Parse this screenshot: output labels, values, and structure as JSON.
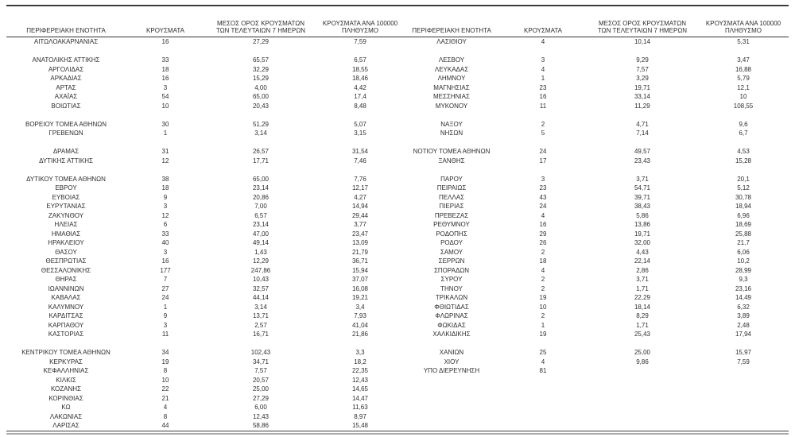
{
  "colors": {
    "text": "#2e2e2e",
    "rule_dark": "#3c3c3c",
    "rule_light": "#ababab",
    "background": "#ffffff"
  },
  "table": {
    "header_lines": [
      [
        "ΠΕΡΙΦΕΡΕΙΑΚΗ ΕΝΟΤΗΤΑ"
      ],
      [
        "ΚΡΟΥΣΜΑΤΑ"
      ],
      [
        "ΜΕΣΟΣ ΟΡΟΣ ΚΡΟΥΣΜΑΤΩΝ",
        "ΤΩΝ ΤΕΛΕΥΤΑΙΩΝ 7 ΗΜΕΡΩΝ"
      ],
      [
        "ΚΡΟΥΣΜΑΤΑ ΑΝΑ 100000",
        "ΠΛΗΘΥΣΜΟ"
      ]
    ],
    "left_rows": [
      [
        "ΑΙΤΩΛΟΑΚΑΡΝΑΝΙΑΣ",
        "16",
        "27,29",
        "7,59"
      ],
      null,
      [
        "ΑΝΑΤΟΛΙΚΗΣ ΑΤΤΙΚΗΣ",
        "33",
        "65,57",
        "6,57"
      ],
      [
        "ΑΡΓΟΛΙΔΑΣ",
        "18",
        "32,29",
        "18,55"
      ],
      [
        "ΑΡΚΑΔΙΑΣ",
        "16",
        "15,29",
        "18,46"
      ],
      [
        "ΑΡΤΑΣ",
        "3",
        "4,00",
        "4,42"
      ],
      [
        "ΑΧΑΪΑΣ",
        "54",
        "65,00",
        "17,4"
      ],
      [
        "ΒΟΙΩΤΙΑΣ",
        "10",
        "20,43",
        "8,48"
      ],
      null,
      [
        "ΒΟΡΕΙΟΥ ΤΟΜΕΑ ΑΘΗΝΩΝ",
        "30",
        "51,29",
        "5,07"
      ],
      [
        "ΓΡΕΒΕΝΩΝ",
        "1",
        "3,14",
        "3,15"
      ],
      null,
      [
        "ΔΡΑΜΑΣ",
        "31",
        "26,57",
        "31,54"
      ],
      [
        "ΔΥΤΙΚΗΣ ΑΤΤΙΚΗΣ",
        "12",
        "17,71",
        "7,46"
      ],
      null,
      [
        "ΔΥΤΙΚΟΥ ΤΟΜΕΑ ΑΘΗΝΩΝ",
        "38",
        "65,00",
        "7,76"
      ],
      [
        "ΕΒΡΟΥ",
        "18",
        "23,14",
        "12,17"
      ],
      [
        "ΕΥΒΟΙΑΣ",
        "9",
        "20,86",
        "4,27"
      ],
      [
        "ΕΥΡΥΤΑΝΙΑΣ",
        "3",
        "7,00",
        "14,94"
      ],
      [
        "ΖΑΚΥΝΘΟΥ",
        "12",
        "6,57",
        "29,44"
      ],
      [
        "ΗΛΕΙΑΣ",
        "6",
        "23,14",
        "3,77"
      ],
      [
        "ΗΜΑΘΙΑΣ",
        "33",
        "47,00",
        "23,47"
      ],
      [
        "ΗΡΑΚΛΕΙΟΥ",
        "40",
        "49,14",
        "13,09"
      ],
      [
        "ΘΑΣΟΥ",
        "3",
        "1,43",
        "21,79"
      ],
      [
        "ΘΕΣΠΡΩΤΙΑΣ",
        "16",
        "12,29",
        "36,71"
      ],
      [
        "ΘΕΣΣΑΛΟΝΙΚΗΣ",
        "177",
        "247,86",
        "15,94"
      ],
      [
        "ΘΗΡΑΣ",
        "7",
        "10,43",
        "37,07"
      ],
      [
        "ΙΩΑΝΝΙΝΩΝ",
        "27",
        "32,57",
        "16,08"
      ],
      [
        "ΚΑΒΑΛΑΣ",
        "24",
        "44,14",
        "19,21"
      ],
      [
        "ΚΑΛΥΜΝΟΥ",
        "1",
        "3,14",
        "3,4"
      ],
      [
        "ΚΑΡΔΙΤΣΑΣ",
        "9",
        "13,71",
        "7,93"
      ],
      [
        "ΚΑΡΠΑΘΟΥ",
        "3",
        "2,57",
        "41,04"
      ],
      [
        "ΚΑΣΤΟΡΙΑΣ",
        "11",
        "16,71",
        "21,86"
      ],
      null,
      [
        "ΚΕΝΤΡΙΚΟΥ ΤΟΜΕΑ ΑΘΗΝΩΝ",
        "34",
        "102,43",
        "3,3"
      ],
      [
        "ΚΕΡΚΥΡΑΣ",
        "19",
        "34,71",
        "18,2"
      ],
      [
        "ΚΕΦΑΛΛΗΝΙΑΣ",
        "8",
        "7,57",
        "22,35"
      ],
      [
        "ΚΙΛΚΙΣ",
        "10",
        "20,57",
        "12,43"
      ],
      [
        "ΚΟΖΑΝΗΣ",
        "22",
        "25,00",
        "14,65"
      ],
      [
        "ΚΟΡΙΝΘΙΑΣ",
        "21",
        "27,29",
        "14,47"
      ],
      [
        "ΚΩ",
        "4",
        "6,00",
        "11,63"
      ],
      [
        "ΛΑΚΩΝΙΑΣ",
        "8",
        "12,43",
        "8,97"
      ],
      [
        "ΛΑΡΙΣΑΣ",
        "44",
        "58,86",
        "15,48"
      ]
    ],
    "right_rows": [
      [
        "ΛΑΣΙΘΙΟΥ",
        "4",
        "10,14",
        "5,31"
      ],
      null,
      [
        "ΛΕΣΒΟΥ",
        "3",
        "9,29",
        "3,47"
      ],
      [
        "ΛΕΥΚΑΔΑΣ",
        "4",
        "7,57",
        "16,88"
      ],
      [
        "ΛΗΜΝΟΥ",
        "1",
        "3,29",
        "5,79"
      ],
      [
        "ΜΑΓΝΗΣΙΑΣ",
        "23",
        "19,71",
        "12,1"
      ],
      [
        "ΜΕΣΣΗΝΙΑΣ",
        "16",
        "33,14",
        "10"
      ],
      [
        "ΜΥΚΟΝΟΥ",
        "11",
        "11,29",
        "108,55"
      ],
      null,
      [
        "ΝΑΞΟΥ",
        "2",
        "4,71",
        "9,6"
      ],
      [
        "ΝΗΣΩΝ",
        "5",
        "7,14",
        "6,7"
      ],
      null,
      [
        "ΝΟΤΙΟΥ ΤΟΜΕΑ ΑΘΗΝΩΝ",
        "24",
        "49,57",
        "4,53"
      ],
      [
        "ΞΑΝΘΗΣ",
        "17",
        "23,43",
        "15,28"
      ],
      null,
      [
        "ΠΑΡΟΥ",
        "3",
        "3,71",
        "20,1"
      ],
      [
        "ΠΕΙΡΑΙΩΣ",
        "23",
        "54,71",
        "5,12"
      ],
      [
        "ΠΕΛΛΑΣ",
        "43",
        "39,71",
        "30,78"
      ],
      [
        "ΠΙΕΡΙΑΣ",
        "24",
        "38,43",
        "18,94"
      ],
      [
        "ΠΡΕΒΕΖΑΣ",
        "4",
        "5,86",
        "6,96"
      ],
      [
        "ΡΕΘΥΜΝΟΥ",
        "16",
        "13,86",
        "18,69"
      ],
      [
        "ΡΟΔΟΠΗΣ",
        "29",
        "19,71",
        "25,88"
      ],
      [
        "ΡΟΔΟΥ",
        "26",
        "32,00",
        "21,7"
      ],
      [
        "ΣΑΜΟΥ",
        "2",
        "4,43",
        "6,06"
      ],
      [
        "ΣΕΡΡΩΝ",
        "18",
        "22,14",
        "10,2"
      ],
      [
        "ΣΠΟΡΑΔΩΝ",
        "4",
        "2,86",
        "28,99"
      ],
      [
        "ΣΥΡΟΥ",
        "2",
        "3,71",
        "9,3"
      ],
      [
        "ΤΗΝΟΥ",
        "2",
        "1,71",
        "23,16"
      ],
      [
        "ΤΡΙΚΑΛΩΝ",
        "19",
        "22,29",
        "14,49"
      ],
      [
        "ΦΘΙΩΤΙΔΑΣ",
        "10",
        "18,14",
        "6,32"
      ],
      [
        "ΦΛΩΡΙΝΑΣ",
        "2",
        "8,29",
        "3,89"
      ],
      [
        "ΦΩΚΙΔΑΣ",
        "1",
        "1,71",
        "2,48"
      ],
      [
        "ΧΑΛΚΙΔΙΚΗΣ",
        "19",
        "25,43",
        "17,94"
      ],
      null,
      [
        "ΧΑΝΙΩΝ",
        "25",
        "25,00",
        "15,97"
      ],
      [
        "ΧΙΟΥ",
        "4",
        "9,86",
        "7,59"
      ],
      [
        "ΥΠΟ ΔΙΕΡΕΥΝΗΣΗ",
        "81",
        "",
        ""
      ],
      null,
      null,
      null,
      null,
      null,
      null
    ]
  }
}
